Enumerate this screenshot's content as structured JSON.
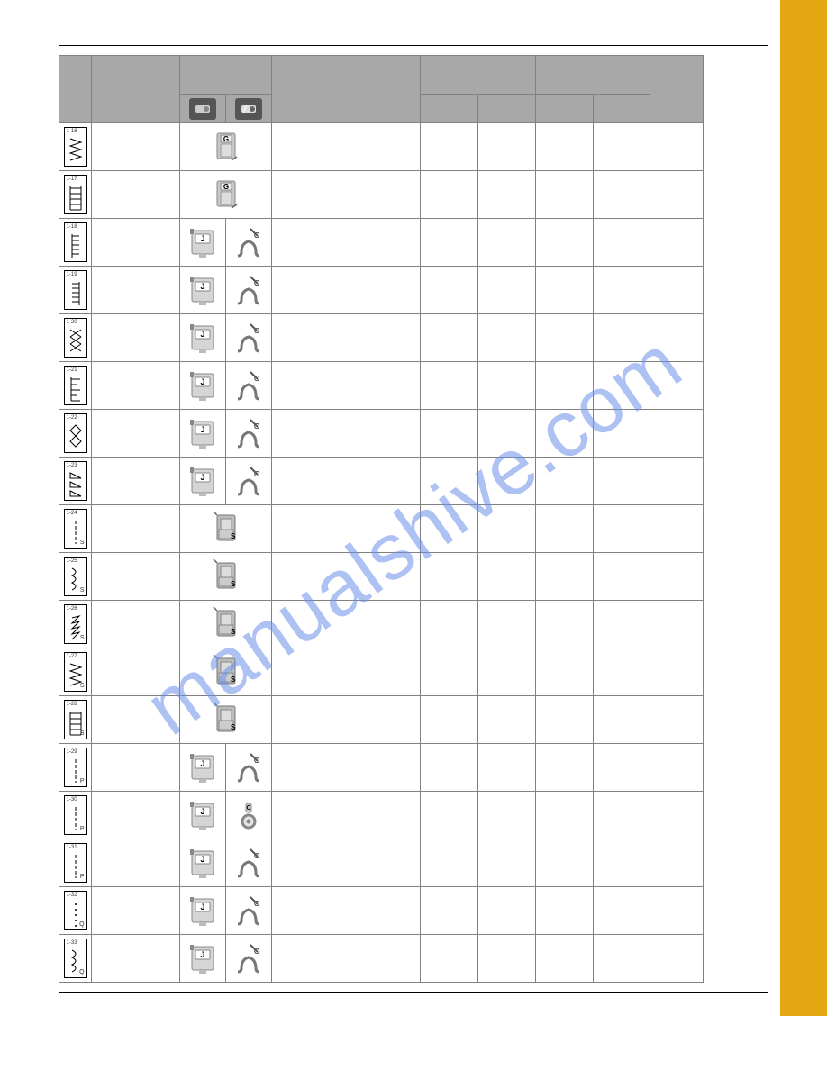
{
  "watermark": "manualshive.com",
  "header_icons": [
    "presser-foot-dark",
    "presser-foot-light"
  ],
  "rows": [
    {
      "id": "1-16",
      "pattern": "zigzag-open",
      "sub": "",
      "foot1": "G-gray",
      "foot2": ""
    },
    {
      "id": "1-17",
      "pattern": "ladder",
      "sub": "",
      "foot1": "G-gray",
      "foot2": ""
    },
    {
      "id": "1-18",
      "pattern": "blind-right",
      "sub": "",
      "foot1": "J",
      "foot2": "O"
    },
    {
      "id": "1-19",
      "pattern": "blind-left",
      "sub": "",
      "foot1": "J",
      "foot2": "O"
    },
    {
      "id": "1-20",
      "pattern": "cross",
      "sub": "",
      "foot1": "J",
      "foot2": "O"
    },
    {
      "id": "1-21",
      "pattern": "e-stitch",
      "sub": "",
      "foot1": "J",
      "foot2": "O"
    },
    {
      "id": "1-22",
      "pattern": "diamond",
      "sub": "",
      "foot1": "J",
      "foot2": "O"
    },
    {
      "id": "1-23",
      "pattern": "triangle",
      "sub": "",
      "foot1": "J",
      "foot2": "O"
    },
    {
      "id": "1-24",
      "pattern": "straight-dash",
      "sub": "S",
      "foot1": "S-gray",
      "foot2": ""
    },
    {
      "id": "1-25",
      "pattern": "wave",
      "sub": "S",
      "foot1": "S-gray",
      "foot2": ""
    },
    {
      "id": "1-26",
      "pattern": "peaks",
      "sub": "S",
      "foot1": "S-gray",
      "foot2": ""
    },
    {
      "id": "1-27",
      "pattern": "zigzag-open",
      "sub": "S",
      "foot1": "S-gray",
      "foot2": ""
    },
    {
      "id": "1-28",
      "pattern": "ladder",
      "sub": "S",
      "foot1": "S-gray",
      "foot2": ""
    },
    {
      "id": "1-29",
      "pattern": "straight-dash",
      "sub": "P",
      "foot1": "J",
      "foot2": "O"
    },
    {
      "id": "1-30",
      "pattern": "straight-dash",
      "sub": "P",
      "foot1": "J",
      "foot2": "C"
    },
    {
      "id": "1-31",
      "pattern": "straight-dash",
      "sub": "P",
      "foot1": "J",
      "foot2": "O"
    },
    {
      "id": "1-32",
      "pattern": "straight-dot",
      "sub": "Q",
      "foot1": "J",
      "foot2": "O"
    },
    {
      "id": "1-33",
      "pattern": "wave",
      "sub": "Q",
      "foot1": "J",
      "foot2": "O"
    }
  ],
  "colors": {
    "sidebar": "#e5a812",
    "header_bg": "#a8a8a8",
    "border": "#808080",
    "watermark": "#6b8fe8"
  }
}
